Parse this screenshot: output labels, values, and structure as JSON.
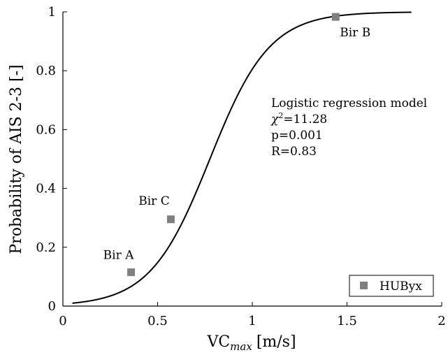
{
  "chart_data": {
    "type": "scatter",
    "xlabel": "VC",
    "xlabel_subscript": "max",
    "xlabel_unit": "[m/s]",
    "ylabel": "Probability of AIS 2-3 [-]",
    "xlim": [
      0,
      2
    ],
    "ylim": [
      0,
      1
    ],
    "xticks": [
      0,
      0.5,
      1,
      1.5,
      2
    ],
    "xtick_labels": [
      "0",
      "0.5",
      "1",
      "1.5",
      "2"
    ],
    "yticks": [
      0,
      0.2,
      0.4,
      0.6,
      0.8,
      1
    ],
    "ytick_labels": [
      "0",
      "0.2",
      "0.4",
      "0.6",
      "0.8",
      "1"
    ],
    "grid": false,
    "legend": {
      "position": "bottom-right",
      "entries": [
        {
          "label": "HUByx",
          "marker": "square",
          "color": "#808080"
        }
      ]
    },
    "series": [
      {
        "name": "HUByx",
        "type": "scatter",
        "marker": "square",
        "color": "#808080",
        "points": [
          {
            "label": "Bir A",
            "x": 0.36,
            "y": 0.115
          },
          {
            "label": "Bir C",
            "x": 0.57,
            "y": 0.295
          },
          {
            "label": "Bir B",
            "x": 1.44,
            "y": 0.983
          }
        ]
      },
      {
        "type": "line",
        "color": "#000000",
        "model": {
          "kind": "logistic",
          "intercept": -4.92,
          "slope": 6.34
        },
        "x_range": [
          0.05,
          1.84
        ]
      }
    ],
    "annotation": {
      "title": "Logistic regression model",
      "chi_symbol": "χ",
      "chi_exponent": "2",
      "chi_value": "=11.28",
      "p": "p=0.001",
      "r": "R=0.83"
    }
  }
}
